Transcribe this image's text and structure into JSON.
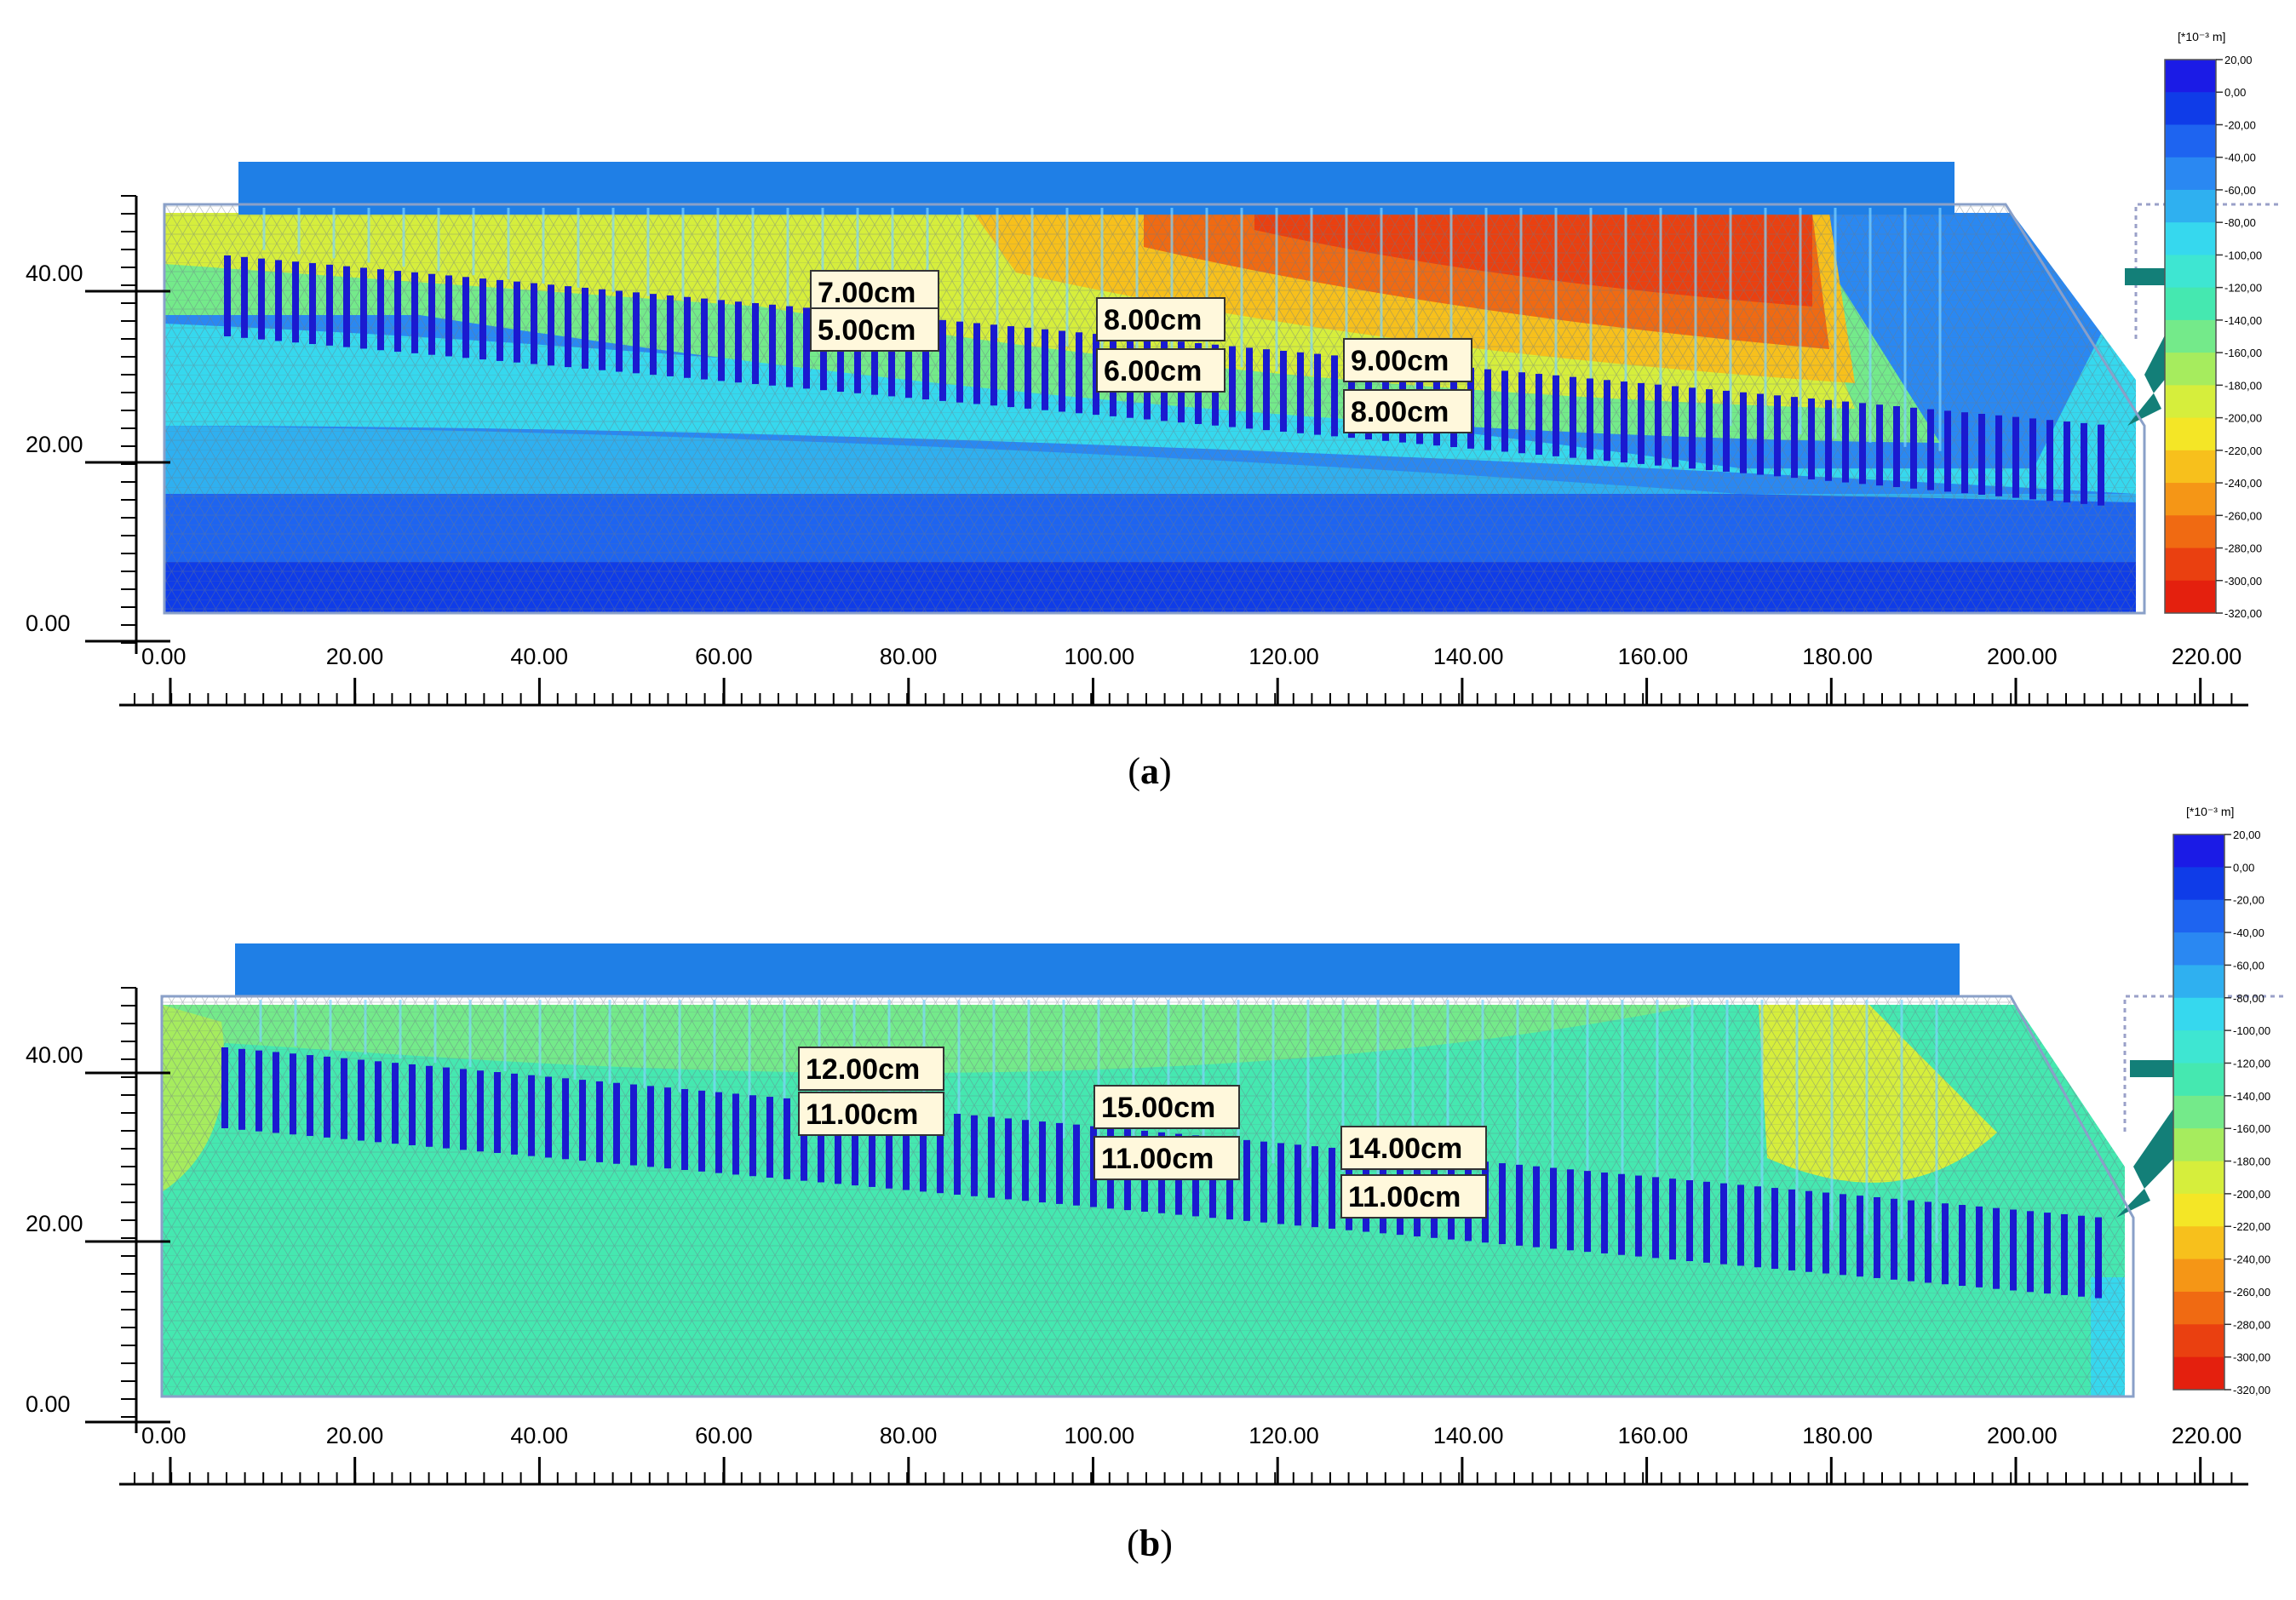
{
  "panels": [
    {
      "id": "a",
      "caption_letter": "a",
      "theme": "hot",
      "y_axis_ticks": [
        "40.00",
        "20.00",
        "0.00"
      ],
      "x_axis_ticks": [
        "0.00",
        "20.00",
        "40.00",
        "60.00",
        "80.00",
        "100.00",
        "120.00",
        "140.00",
        "160.00",
        "180.00",
        "200.00",
        "220.00"
      ],
      "colorbar": {
        "unit": "[*10⁻³ m]",
        "labels": [
          "20,00",
          "0,00",
          "-20,00",
          "-40,00",
          "-60,00",
          "-80,00",
          "-100,00",
          "-120,00",
          "-140,00",
          "-160,00",
          "-180,00",
          "-200,00",
          "-220,00",
          "-240,00",
          "-260,00",
          "-280,00",
          "-300,00",
          "-320,00"
        ]
      },
      "annotations": [
        {
          "top": "7.00cm",
          "bottom": "5.00cm"
        },
        {
          "top": "8.00cm",
          "bottom": "6.00cm"
        },
        {
          "top": "9.00cm",
          "bottom": "8.00cm"
        }
      ]
    },
    {
      "id": "b",
      "caption_letter": "b",
      "theme": "mild",
      "y_axis_ticks": [
        "40.00",
        "20.00",
        "0.00"
      ],
      "x_axis_ticks": [
        "0.00",
        "20.00",
        "40.00",
        "60.00",
        "80.00",
        "100.00",
        "120.00",
        "140.00",
        "160.00",
        "180.00",
        "200.00",
        "220.00"
      ],
      "colorbar": {
        "unit": "[*10⁻³ m]",
        "labels": [
          "20,00",
          "0,00",
          "-20,00",
          "-40,00",
          "-60,00",
          "-80,00",
          "-100,00",
          "-120,00",
          "-140,00",
          "-160,00",
          "-180,00",
          "-200,00",
          "-220,00",
          "-240,00",
          "-260,00",
          "-280,00",
          "-300,00",
          "-320,00"
        ]
      },
      "annotations": [
        {
          "top": "12.00cm",
          "bottom": "11.00cm"
        },
        {
          "top": "15.00cm",
          "bottom": "11.00cm"
        },
        {
          "top": "14.00cm",
          "bottom": "11.00cm"
        }
      ]
    }
  ],
  "colors": {
    "scale": [
      "#1b1be6",
      "#0f3ce8",
      "#1e64f0",
      "#2a88f2",
      "#2fb0f0",
      "#36d8ee",
      "#3ee6d2",
      "#45e8b0",
      "#74ea8a",
      "#a6ec5e",
      "#d6ee3c",
      "#f4e626",
      "#f7c01c",
      "#f59616",
      "#f06a12",
      "#ea4010",
      "#e4200e",
      "#dc0c0c"
    ],
    "embankment": "#1f7fe6",
    "gabion": "#137f78",
    "pile": "#1a1ad0",
    "mesh": "#6a7a88"
  }
}
